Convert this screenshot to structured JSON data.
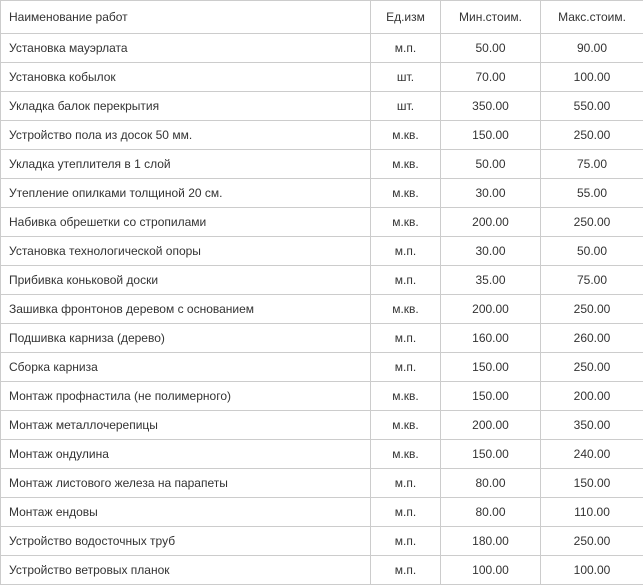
{
  "table": {
    "columns": [
      {
        "key": "name",
        "label": "Наименование работ"
      },
      {
        "key": "unit",
        "label": "Ед.изм"
      },
      {
        "key": "min",
        "label": "Мин.стоим."
      },
      {
        "key": "max",
        "label": "Макс.стоим."
      }
    ],
    "rows": [
      {
        "name": "Установка мауэрлата",
        "unit": "м.п.",
        "min": "50.00",
        "max": "90.00"
      },
      {
        "name": "Установка кобылок",
        "unit": "шт.",
        "min": "70.00",
        "max": "100.00"
      },
      {
        "name": "Укладка балок перекрытия",
        "unit": "шт.",
        "min": "350.00",
        "max": "550.00"
      },
      {
        "name": "Устройство пола из досок 50 мм.",
        "unit": "м.кв.",
        "min": "150.00",
        "max": "250.00"
      },
      {
        "name": "Укладка утеплителя в 1 слой",
        "unit": "м.кв.",
        "min": "50.00",
        "max": "75.00"
      },
      {
        "name": "Утепление опилками толщиной 20 см.",
        "unit": "м.кв.",
        "min": "30.00",
        "max": "55.00"
      },
      {
        "name": "Набивка обрешетки со стропилами",
        "unit": "м.кв.",
        "min": "200.00",
        "max": "250.00"
      },
      {
        "name": "Установка технологической опоры",
        "unit": "м.п.",
        "min": "30.00",
        "max": "50.00"
      },
      {
        "name": "Прибивка коньковой доски",
        "unit": "м.п.",
        "min": "35.00",
        "max": "75.00"
      },
      {
        "name": "Зашивка фронтонов деревом с основанием",
        "unit": "м.кв.",
        "min": "200.00",
        "max": "250.00"
      },
      {
        "name": "Подшивка карниза (дерево)",
        "unit": "м.п.",
        "min": "160.00",
        "max": "260.00"
      },
      {
        "name": "Сборка карниза",
        "unit": "м.п.",
        "min": "150.00",
        "max": "250.00"
      },
      {
        "name": "Монтаж профнастила (не полимерного)",
        "unit": "м.кв.",
        "min": "150.00",
        "max": "200.00"
      },
      {
        "name": "Монтаж металлочерепицы",
        "unit": "м.кв.",
        "min": "200.00",
        "max": "350.00"
      },
      {
        "name": "Монтаж ондулина",
        "unit": "м.кв.",
        "min": "150.00",
        "max": "240.00"
      },
      {
        "name": "Монтаж листового железа на парапеты",
        "unit": "м.п.",
        "min": "80.00",
        "max": "150.00"
      },
      {
        "name": "Монтаж ендовы",
        "unit": "м.п.",
        "min": "80.00",
        "max": "110.00"
      },
      {
        "name": "Устройство водосточных труб",
        "unit": "м.п.",
        "min": "180.00",
        "max": "250.00"
      },
      {
        "name": "Устройство ветровых планок",
        "unit": "м.п.",
        "min": "100.00",
        "max": "100.00"
      }
    ],
    "colors": {
      "border": "#cccccc",
      "text": "#333333",
      "background": "#ffffff"
    },
    "font": {
      "family": "Arial",
      "size_pt": 9
    }
  }
}
